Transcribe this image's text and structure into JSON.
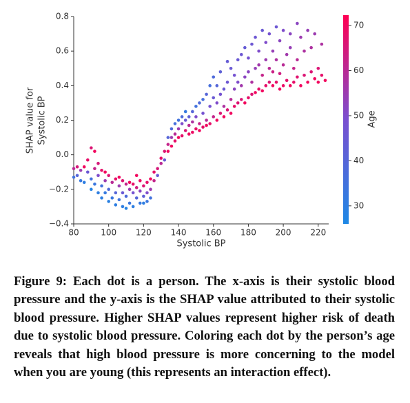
{
  "chart_data": {
    "type": "scatter",
    "xlabel": "Systolic BP",
    "ylabel": [
      "SHAP value for",
      "Systolic BP"
    ],
    "xlim": [
      80,
      226
    ],
    "ylim": [
      -0.4,
      0.8
    ],
    "xticks": [
      80,
      100,
      120,
      140,
      160,
      180,
      200,
      220
    ],
    "yticks": [
      {
        "value": -0.4,
        "label": "−0.4"
      },
      {
        "value": -0.2,
        "label": "−0.2"
      },
      {
        "value": 0,
        "label": "0.0"
      },
      0.2,
      0.4,
      0.6,
      0.8
    ],
    "color_label": "Age",
    "color_lim": [
      26,
      72.3
    ],
    "color_ticks": [
      30,
      40,
      50,
      60,
      70
    ],
    "colormap": [
      "#1e88e5",
      "#7a4fd0",
      "#ff0052"
    ],
    "x": [
      80,
      80,
      82,
      82,
      84,
      84,
      86,
      86,
      88,
      88,
      90,
      90,
      90,
      92,
      92,
      92,
      94,
      94,
      94,
      96,
      96,
      96,
      98,
      98,
      98,
      100,
      100,
      100,
      102,
      102,
      104,
      104,
      104,
      106,
      106,
      106,
      108,
      108,
      108,
      110,
      110,
      110,
      112,
      112,
      112,
      114,
      114,
      114,
      116,
      116,
      116,
      118,
      118,
      118,
      120,
      120,
      120,
      122,
      122,
      122,
      124,
      124,
      124,
      126,
      126,
      128,
      128,
      130,
      130,
      132,
      132,
      134,
      134,
      134,
      136,
      136,
      136,
      138,
      138,
      138,
      140,
      140,
      140,
      142,
      142,
      142,
      144,
      144,
      144,
      146,
      146,
      146,
      148,
      148,
      148,
      150,
      150,
      150,
      152,
      152,
      152,
      154,
      154,
      154,
      156,
      156,
      156,
      158,
      158,
      158,
      160,
      160,
      160,
      162,
      162,
      162,
      164,
      164,
      164,
      166,
      166,
      166,
      168,
      168,
      168,
      170,
      170,
      170,
      172,
      172,
      172,
      174,
      174,
      174,
      176,
      176,
      176,
      178,
      178,
      178,
      180,
      180,
      180,
      182,
      182,
      182,
      184,
      184,
      184,
      186,
      186,
      186,
      188,
      188,
      188,
      190,
      190,
      190,
      192,
      192,
      192,
      194,
      194,
      194,
      196,
      196,
      196,
      198,
      198,
      198,
      200,
      200,
      200,
      202,
      202,
      204,
      204,
      204,
      206,
      206,
      208,
      208,
      208,
      210,
      210,
      212,
      212,
      214,
      214,
      216,
      216,
      218,
      218,
      220,
      220,
      222,
      222,
      224
    ],
    "values": [
      -0.08,
      -0.13,
      -0.12,
      -0.07,
      -0.15,
      -0.09,
      -0.07,
      -0.16,
      -0.1,
      -0.03,
      -0.14,
      0.04,
      -0.2,
      -0.08,
      -0.17,
      0.02,
      -0.12,
      -0.22,
      -0.05,
      -0.18,
      -0.25,
      -0.09,
      -0.15,
      -0.22,
      -0.1,
      -0.2,
      -0.27,
      -0.12,
      -0.16,
      -0.25,
      -0.22,
      -0.14,
      -0.29,
      -0.18,
      -0.26,
      -0.13,
      -0.22,
      -0.3,
      -0.15,
      -0.24,
      -0.17,
      -0.31,
      -0.2,
      -0.28,
      -0.16,
      -0.22,
      -0.3,
      -0.17,
      -0.25,
      -0.19,
      -0.12,
      -0.21,
      -0.28,
      -0.15,
      -0.24,
      -0.18,
      -0.28,
      -0.22,
      -0.16,
      -0.27,
      -0.2,
      -0.25,
      -0.14,
      -0.15,
      -0.1,
      -0.08,
      -0.12,
      -0.05,
      -0.02,
      0.02,
      -0.03,
      0.06,
      0.1,
      0.02,
      0.1,
      0.15,
      0.05,
      0.12,
      0.18,
      0.08,
      0.15,
      0.2,
      0.1,
      0.18,
      0.22,
      0.11,
      0.2,
      0.14,
      0.25,
      0.17,
      0.22,
      0.12,
      0.19,
      0.25,
      0.13,
      0.22,
      0.28,
      0.15,
      0.18,
      0.3,
      0.14,
      0.24,
      0.32,
      0.16,
      0.2,
      0.35,
      0.17,
      0.28,
      0.4,
      0.18,
      0.22,
      0.33,
      0.45,
      0.2,
      0.3,
      0.4,
      0.24,
      0.35,
      0.48,
      0.22,
      0.28,
      0.38,
      0.26,
      0.42,
      0.54,
      0.24,
      0.32,
      0.5,
      0.28,
      0.38,
      0.46,
      0.3,
      0.42,
      0.55,
      0.32,
      0.4,
      0.58,
      0.3,
      0.45,
      0.62,
      0.33,
      0.48,
      0.56,
      0.35,
      0.42,
      0.64,
      0.36,
      0.5,
      0.68,
      0.38,
      0.52,
      0.6,
      0.37,
      0.46,
      0.72,
      0.4,
      0.55,
      0.65,
      0.42,
      0.5,
      0.7,
      0.4,
      0.48,
      0.6,
      0.42,
      0.55,
      0.74,
      0.38,
      0.47,
      0.66,
      0.4,
      0.52,
      0.72,
      0.43,
      0.58,
      0.4,
      0.62,
      0.7,
      0.42,
      0.5,
      0.45,
      0.76,
      0.55,
      0.4,
      0.68,
      0.46,
      0.6,
      0.42,
      0.72,
      0.48,
      0.62,
      0.44,
      0.7,
      0.5,
      0.42,
      0.46,
      0.64,
      0.43
    ],
    "color_values": [
      60,
      35,
      40,
      65,
      32,
      55,
      70,
      30,
      45,
      68,
      35,
      66,
      28,
      62,
      33,
      70,
      50,
      30,
      65,
      35,
      30,
      68,
      55,
      32,
      70,
      38,
      29,
      66,
      60,
      33,
      40,
      68,
      30,
      55,
      34,
      70,
      45,
      30,
      66,
      38,
      62,
      28,
      55,
      33,
      70,
      48,
      30,
      68,
      40,
      64,
      70,
      52,
      32,
      69,
      42,
      66,
      30,
      50,
      68,
      33,
      55,
      35,
      70,
      62,
      68,
      65,
      45,
      60,
      68,
      66,
      45,
      62,
      40,
      70,
      55,
      38,
      70,
      60,
      36,
      68,
      55,
      35,
      70,
      50,
      38,
      68,
      45,
      66,
      32,
      60,
      42,
      70,
      58,
      40,
      69,
      50,
      35,
      68,
      62,
      38,
      70,
      48,
      36,
      68,
      60,
      40,
      70,
      48,
      36,
      68,
      62,
      45,
      38,
      70,
      50,
      40,
      66,
      48,
      42,
      70,
      58,
      45,
      66,
      46,
      44,
      70,
      60,
      45,
      68,
      52,
      48,
      66,
      50,
      45,
      66,
      56,
      46,
      70,
      52,
      44,
      68,
      52,
      48,
      66,
      58,
      46,
      70,
      54,
      46,
      68,
      56,
      50,
      70,
      62,
      45,
      68,
      55,
      50,
      66,
      60,
      48,
      70,
      63,
      54,
      68,
      58,
      46,
      70,
      64,
      52,
      69,
      60,
      50,
      68,
      56,
      70,
      54,
      52,
      68,
      62,
      67,
      52,
      60,
      70,
      55,
      66,
      58,
      70,
      54,
      66,
      58,
      70,
      55,
      66,
      70,
      68,
      58,
      70
    ]
  },
  "caption": "Figure 9: Each dot is a person. The x-axis is their systolic blood pressure and the y-axis is the SHAP value attributed to their systolic blood pressure. Higher SHAP values represent higher risk of death due to systolic blood pressure. Coloring each dot by the person’s age reveals that high blood pressure is more concerning to the model when you are young (this represents an interaction effect)."
}
